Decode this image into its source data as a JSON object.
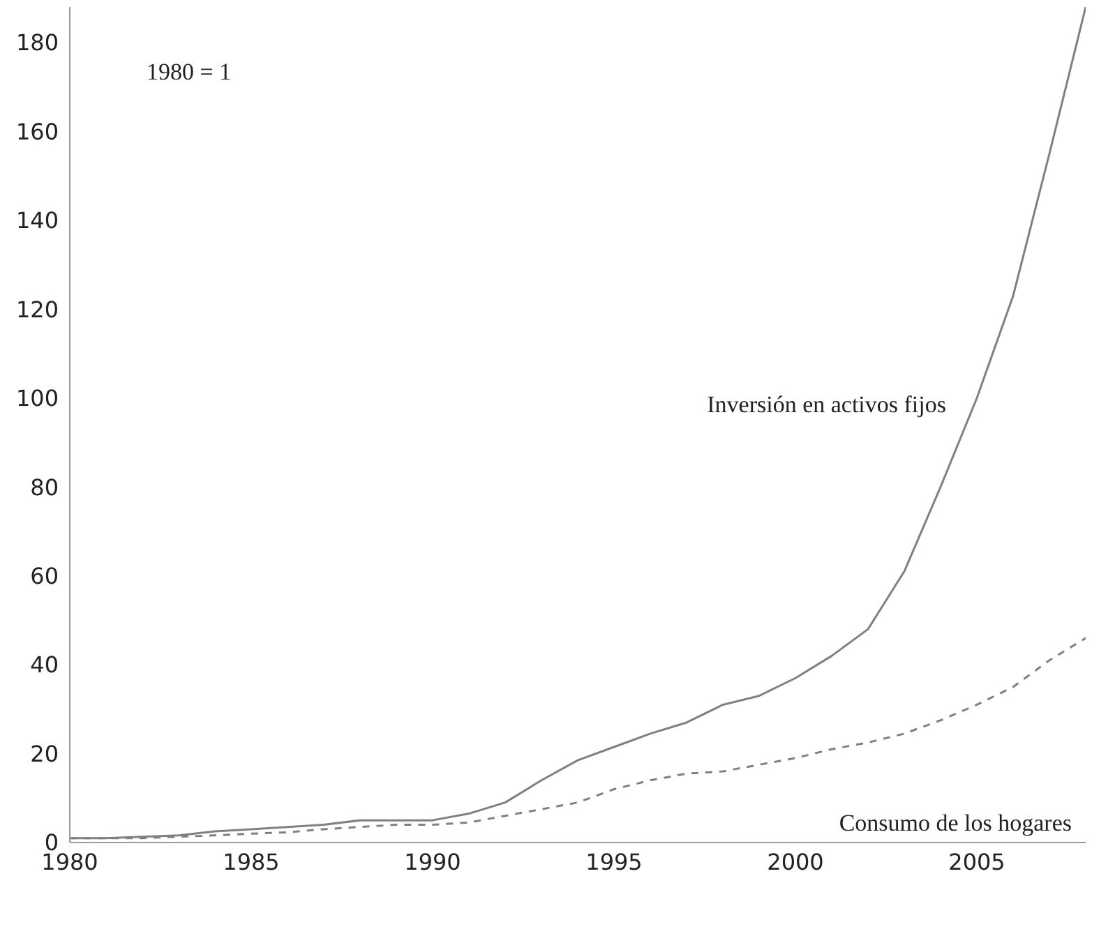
{
  "chart_data": {
    "type": "line",
    "x": [
      1980,
      1981,
      1982,
      1983,
      1984,
      1985,
      1986,
      1987,
      1988,
      1989,
      1990,
      1991,
      1992,
      1993,
      1994,
      1995,
      1996,
      1997,
      1998,
      1999,
      2000,
      2001,
      2002,
      2003,
      2004,
      2005,
      2006,
      2007,
      2008
    ],
    "series": [
      {
        "name": "Inversión en activos fijos",
        "color": "#808080",
        "line_style": "solid",
        "values": [
          1,
          1,
          1.3,
          1.6,
          2.5,
          3,
          3.5,
          4,
          5,
          5,
          5,
          6.5,
          9,
          14,
          18.5,
          21.5,
          24.5,
          27,
          31,
          33,
          37,
          42,
          48,
          61,
          80,
          100,
          123,
          155,
          188
        ]
      },
      {
        "name": "Consumo de los hogares",
        "color": "#808080",
        "line_style": "dashed",
        "values": [
          1,
          1,
          1,
          1.3,
          1.6,
          2,
          2.3,
          3,
          3.5,
          4,
          4,
          4.5,
          6,
          7.5,
          9,
          12,
          14,
          15.5,
          16,
          17.5,
          19,
          21,
          22.5,
          24.5,
          27.5,
          31,
          35,
          41,
          46
        ]
      }
    ],
    "xlim": [
      1980,
      2008
    ],
    "xticks": [
      1980,
      1985,
      1990,
      1995,
      2000,
      2005
    ],
    "ylim": [
      0,
      188
    ],
    "yticks": [
      0,
      20,
      40,
      60,
      80,
      100,
      120,
      140,
      160,
      180
    ],
    "annotations": [
      "1980 = 1"
    ],
    "grid": false,
    "legend": false,
    "marker": "none"
  }
}
